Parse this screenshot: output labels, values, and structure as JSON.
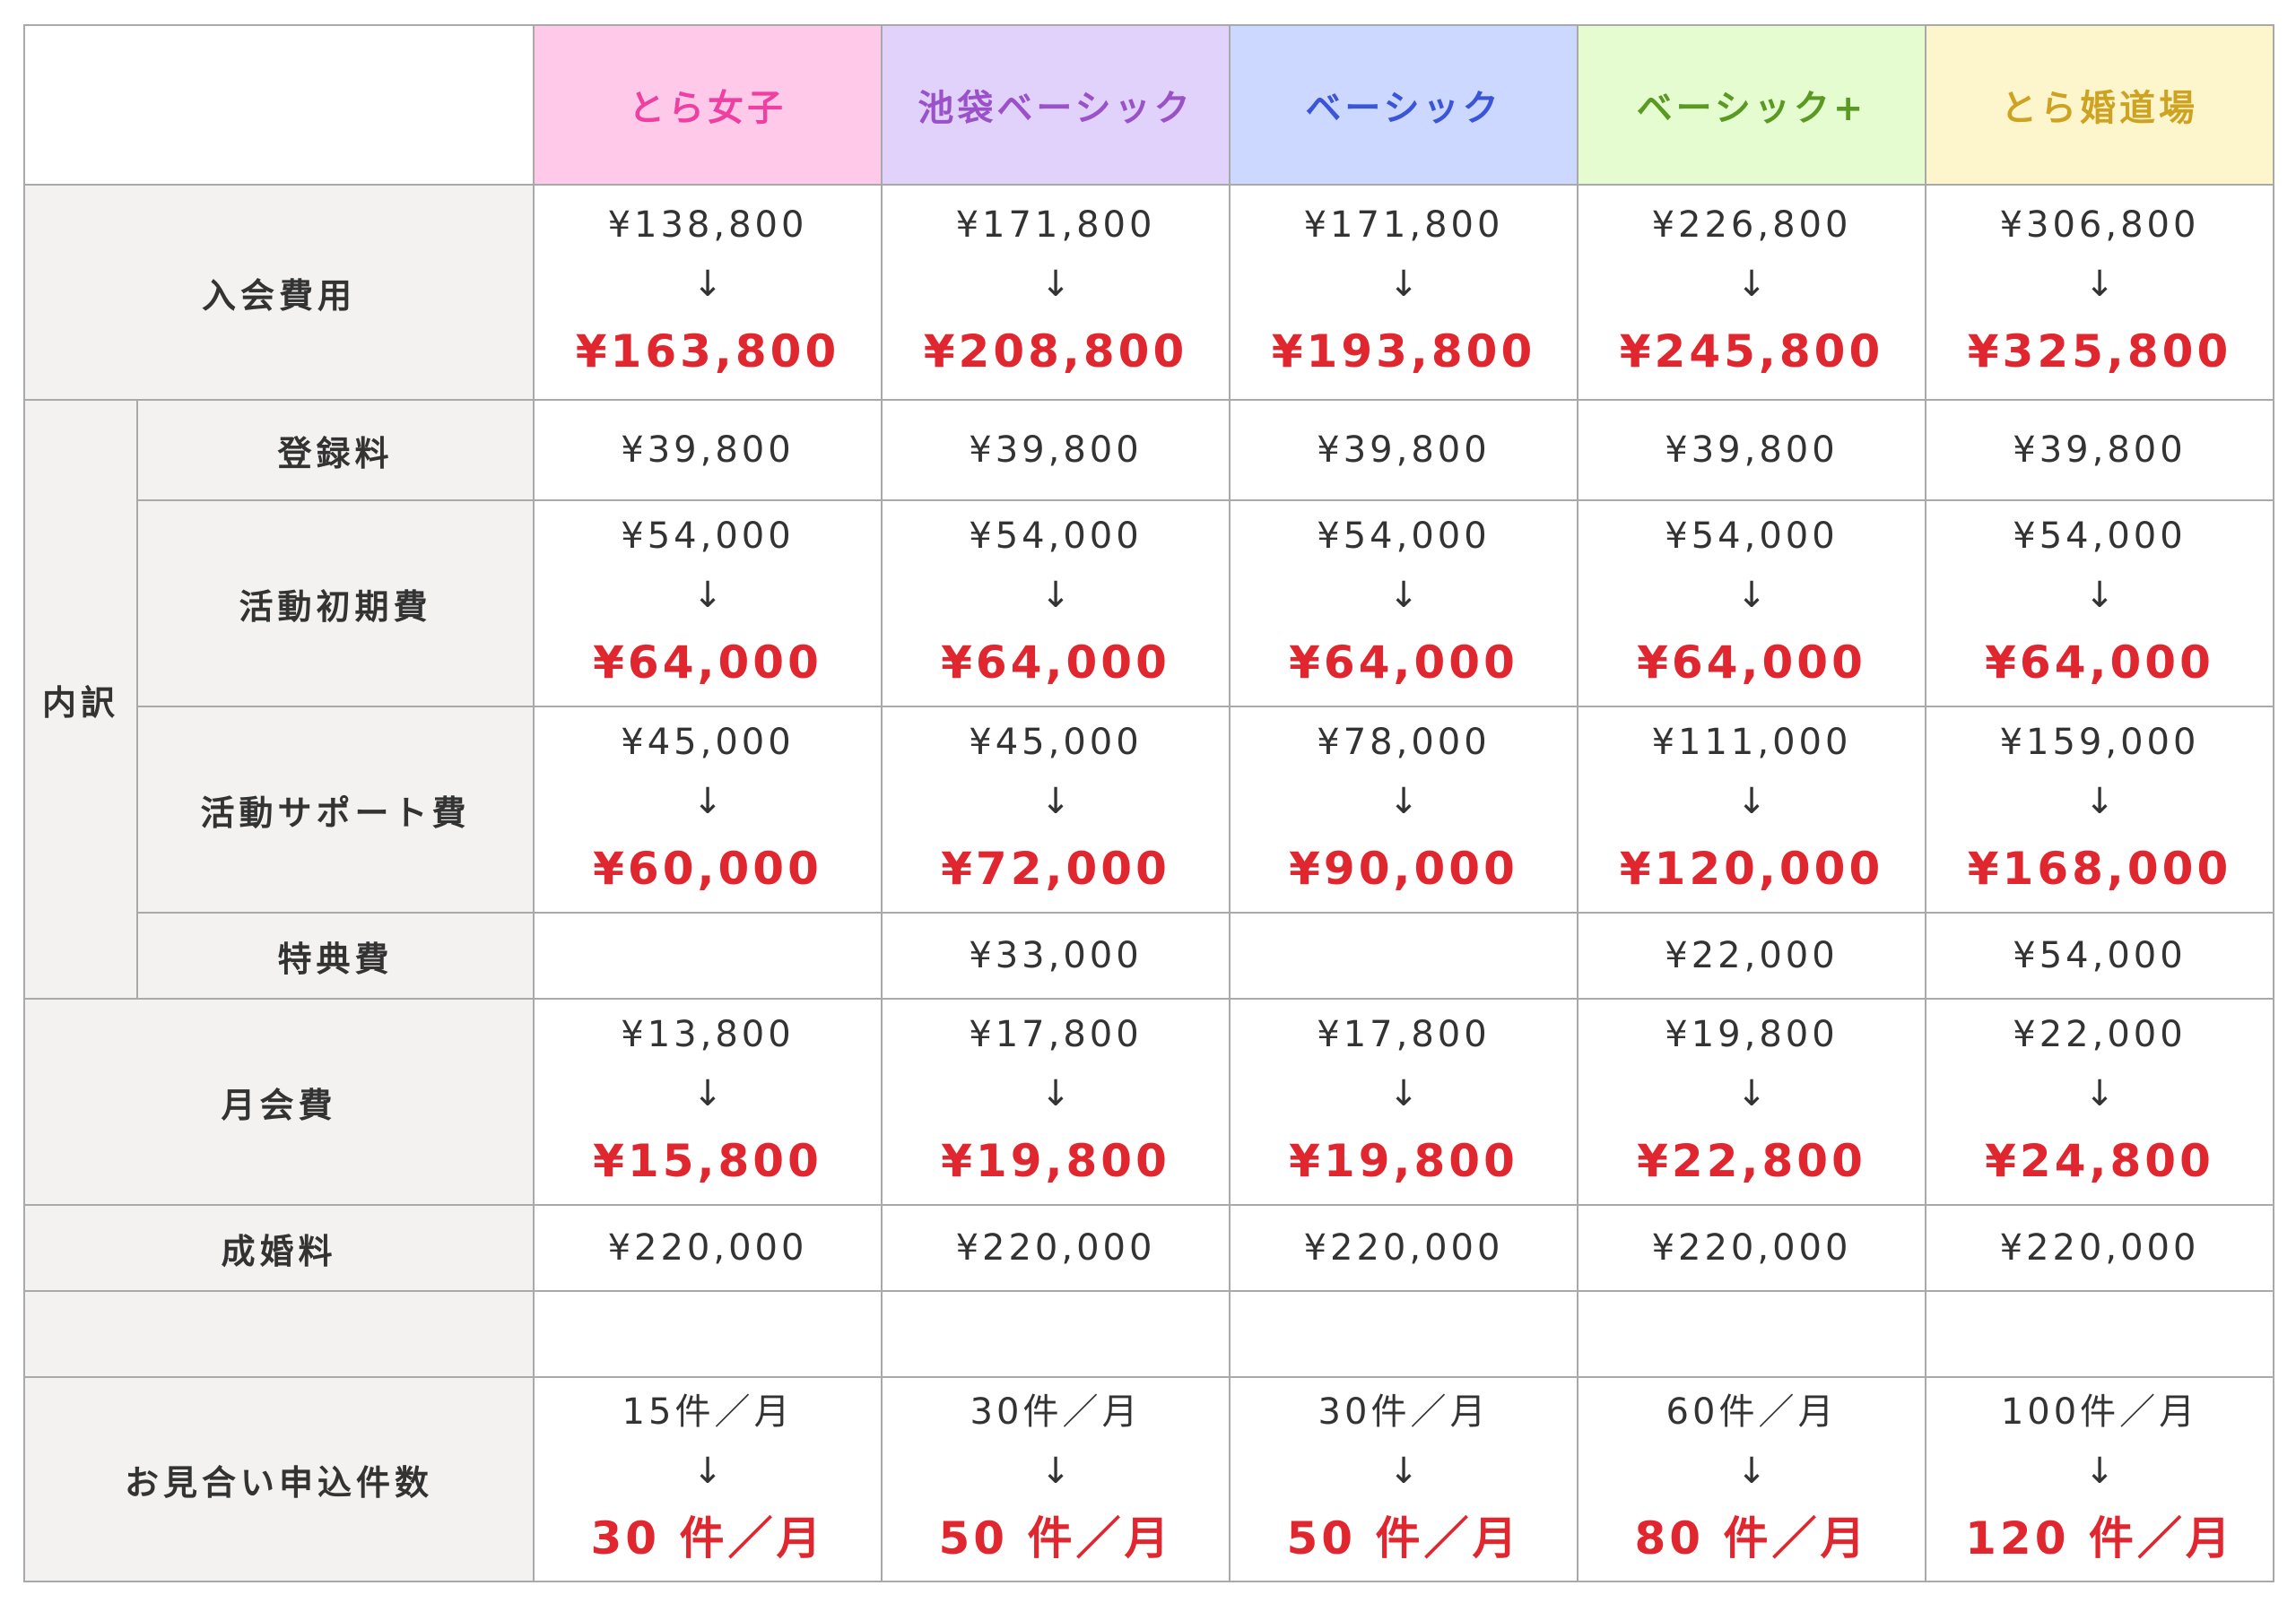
{
  "plans": [
    {
      "name": "とら女子",
      "color": "#ef3fa0",
      "bg": "#ffc9e9"
    },
    {
      "name": "池袋ベーシック",
      "color": "#9b52c9",
      "bg": "#e0d2fb"
    },
    {
      "name": "ベーシック",
      "color": "#3a55d8",
      "bg": "#ccd8ff"
    },
    {
      "name": "ベーシック+",
      "color": "#5a9a22",
      "bg": "#e5fcd0"
    },
    {
      "name": "とら婚道場",
      "color": "#cfa322",
      "bg": "#fdf6cd"
    }
  ],
  "rows": {
    "entry_fee": {
      "label": "入会費用",
      "old": [
        "¥138,800",
        "¥171,800",
        "¥171,800",
        "¥226,800",
        "¥306,800"
      ],
      "new": [
        "¥163,800",
        "¥208,800",
        "¥193,800",
        "¥245,800",
        "¥325,800"
      ]
    },
    "breakdown_label": "内訳",
    "registration": {
      "label": "登録料",
      "values": [
        "¥39,800",
        "¥39,800",
        "¥39,800",
        "¥39,800",
        "¥39,800"
      ]
    },
    "initial_activity": {
      "label": "活動初期費",
      "old": [
        "¥54,000",
        "¥54,000",
        "¥54,000",
        "¥54,000",
        "¥54,000"
      ],
      "new": [
        "¥64,000",
        "¥64,000",
        "¥64,000",
        "¥64,000",
        "¥64,000"
      ]
    },
    "support": {
      "label": "活動サポート費",
      "old": [
        "¥45,000",
        "¥45,000",
        "¥78,000",
        "¥111,000",
        "¥159,000"
      ],
      "new": [
        "¥60,000",
        "¥72,000",
        "¥90,000",
        "¥120,000",
        "¥168,000"
      ]
    },
    "bonus": {
      "label": "特典費",
      "values": [
        "",
        "¥33,000",
        "",
        "¥22,000",
        "¥54,000"
      ]
    },
    "monthly": {
      "label": "月会費",
      "old": [
        "¥13,800",
        "¥17,800",
        "¥17,800",
        "¥19,800",
        "¥22,000"
      ],
      "new": [
        "¥15,800",
        "¥19,800",
        "¥19,800",
        "¥22,800",
        "¥24,800"
      ]
    },
    "marriage": {
      "label": "成婚料",
      "values": [
        "¥220,000",
        "¥220,000",
        "¥220,000",
        "¥220,000",
        "¥220,000"
      ]
    },
    "empty_label": "",
    "applications": {
      "label": "お見合い申込件数",
      "old": [
        "15件／月",
        "30件／月",
        "30件／月",
        "60件／月",
        "100件／月"
      ],
      "new": [
        "30 件／月",
        "50 件／月",
        "50 件／月",
        "80 件／月",
        "120 件／月"
      ]
    }
  },
  "arrow": "↓"
}
